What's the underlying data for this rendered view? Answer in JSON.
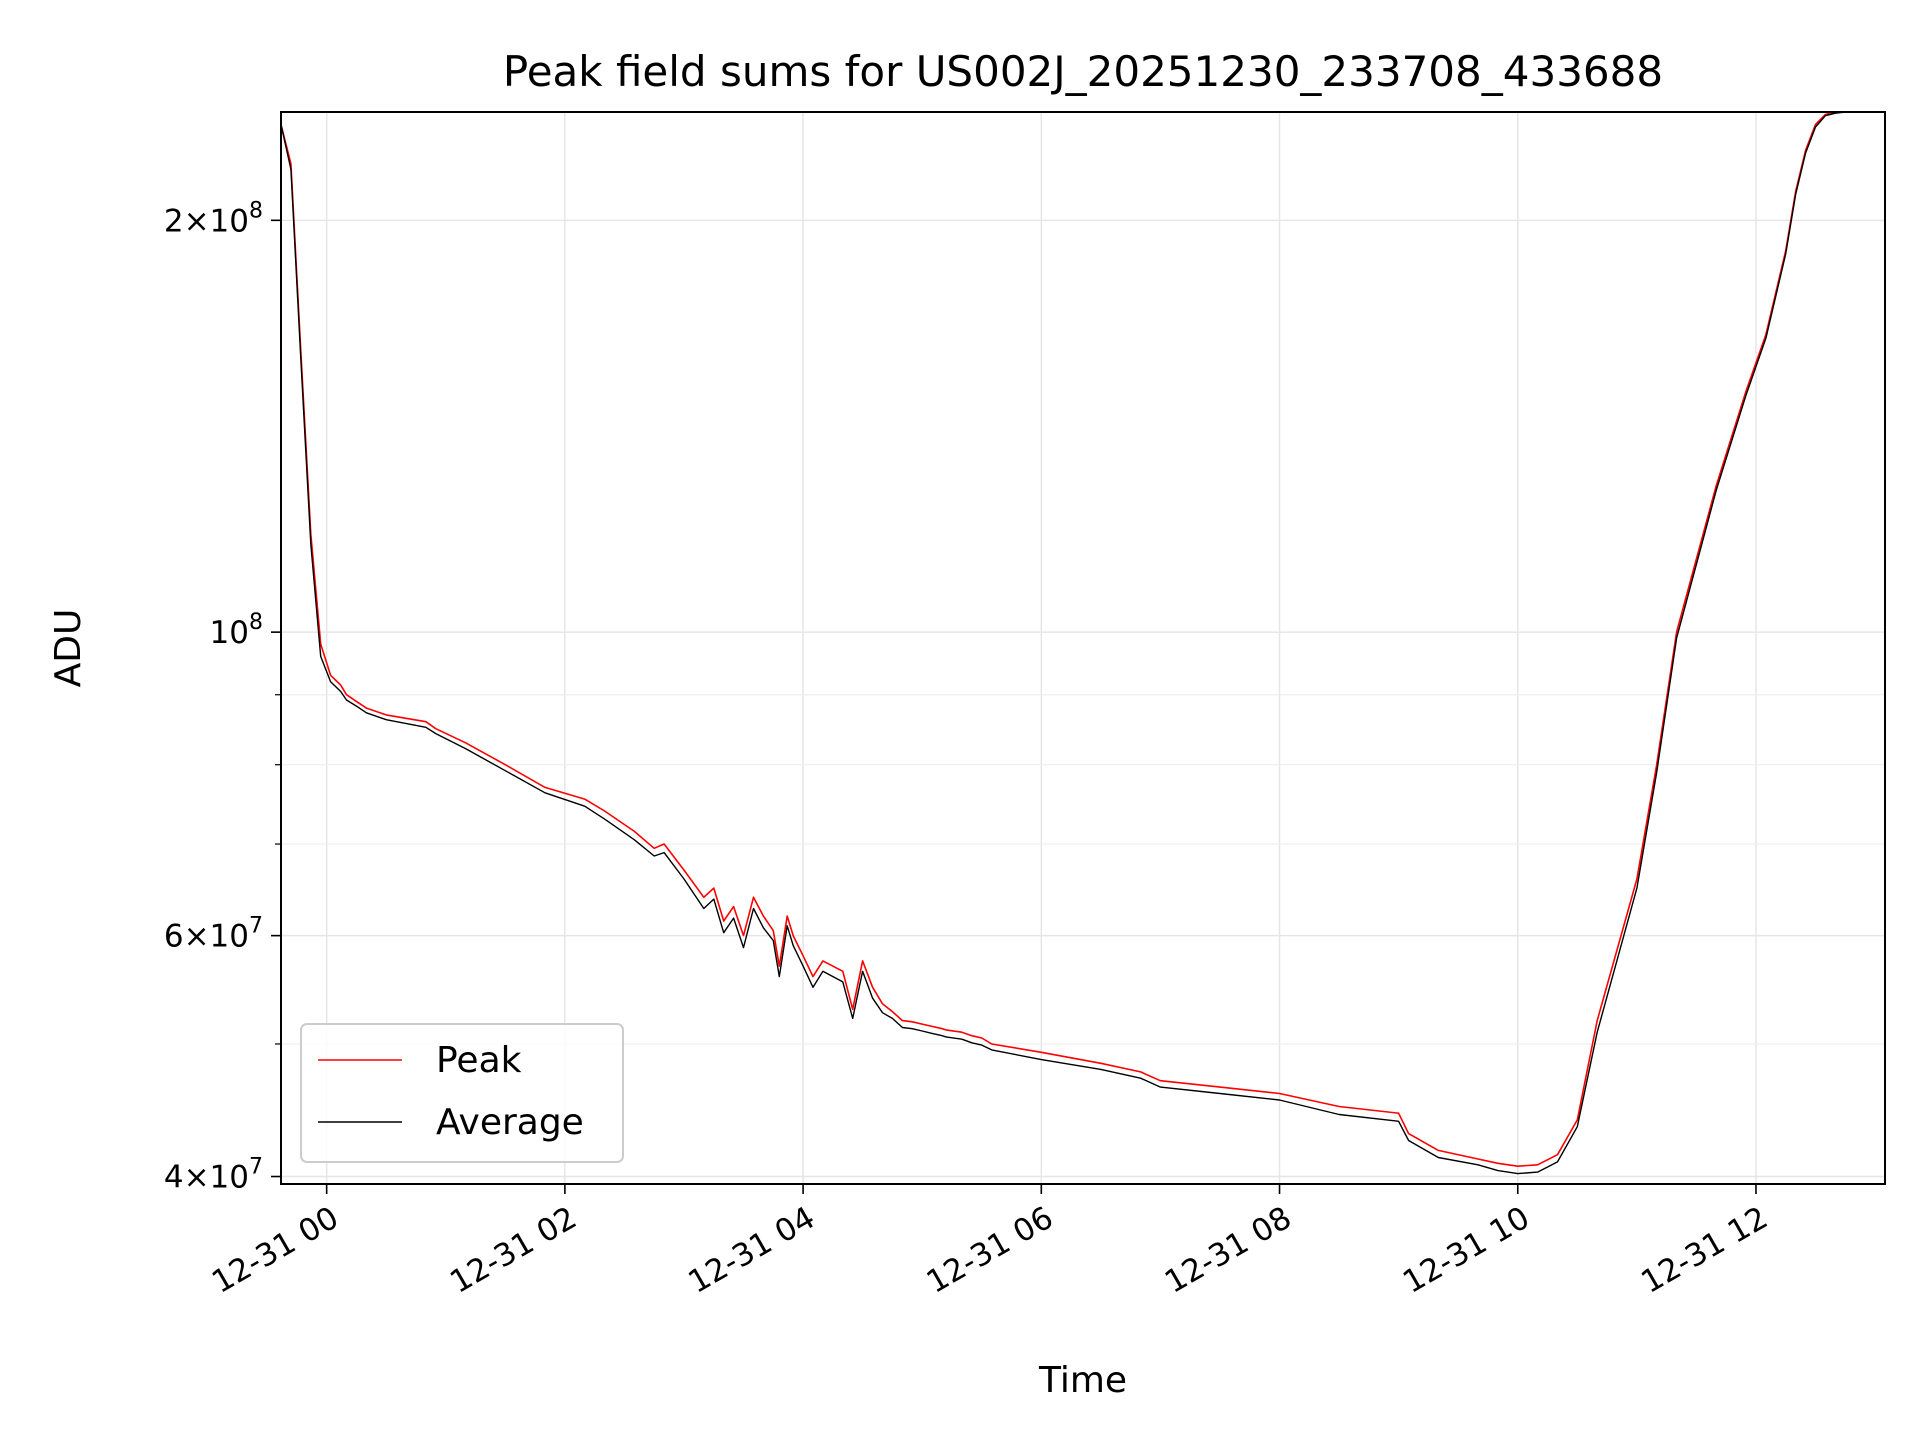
{
  "chart_data": {
    "type": "line",
    "title": "Peak field sums for US002J_20251230_233708_433688",
    "xlabel": "Time",
    "ylabel": "ADU",
    "x_axis_type": "datetime",
    "y_scale": "log",
    "xlim": [
      "12-30 23:37",
      "12-31 13:05"
    ],
    "ylim": [
      39500000,
      240000000
    ],
    "x_ticks": [
      {
        "value": "12-31 00:00",
        "label": "12-31 00"
      },
      {
        "value": "12-31 02:00",
        "label": "12-31 02"
      },
      {
        "value": "12-31 04:00",
        "label": "12-31 04"
      },
      {
        "value": "12-31 06:00",
        "label": "12-31 06"
      },
      {
        "value": "12-31 08:00",
        "label": "12-31 08"
      },
      {
        "value": "12-31 10:00",
        "label": "12-31 10"
      },
      {
        "value": "12-31 12:00",
        "label": "12-31 12"
      }
    ],
    "y_major_ticks": [
      {
        "value": 40000000,
        "mantissa": "4",
        "exponent": "7"
      },
      {
        "value": 60000000,
        "mantissa": "6",
        "exponent": "7"
      },
      {
        "value": 100000000,
        "mantissa": "",
        "exponent": "8"
      },
      {
        "value": 200000000,
        "mantissa": "2",
        "exponent": "8"
      }
    ],
    "y_minor_ticks": [
      50000000,
      70000000,
      80000000,
      90000000
    ],
    "grid": true,
    "legend_position": "lower-left",
    "series": [
      {
        "name": "Peak",
        "color": "#ff0000",
        "x": [
          "12-30 23:37",
          "12-30 23:42",
          "12-30 23:47",
          "12-30 23:52",
          "12-30 23:57",
          "12-31 00:02",
          "12-31 00:07",
          "12-31 00:10",
          "12-31 00:15",
          "12-31 00:20",
          "12-31 00:30",
          "12-31 00:50",
          "12-31 00:55",
          "12-31 01:10",
          "12-31 01:30",
          "12-31 01:50",
          "12-31 02:10",
          "12-31 02:20",
          "12-31 02:35",
          "12-31 02:45",
          "12-31 02:50",
          "12-31 03:00",
          "12-31 03:10",
          "12-31 03:15",
          "12-31 03:20",
          "12-31 03:25",
          "12-31 03:30",
          "12-31 03:35",
          "12-31 03:40",
          "12-31 03:45",
          "12-31 03:48",
          "12-31 03:52",
          "12-31 03:55",
          "12-31 04:00",
          "12-31 04:05",
          "12-31 04:10",
          "12-31 04:20",
          "12-31 04:25",
          "12-31 04:30",
          "12-31 04:35",
          "12-31 04:40",
          "12-31 04:45",
          "12-31 04:50",
          "12-31 04:55",
          "12-31 05:00",
          "12-31 05:05",
          "12-31 05:10",
          "12-31 05:12",
          "12-31 05:20",
          "12-31 05:25",
          "12-31 05:30",
          "12-31 05:35",
          "12-31 06:00",
          "12-31 06:30",
          "12-31 06:50",
          "12-31 07:00",
          "12-31 07:30",
          "12-31 08:00",
          "12-31 08:30",
          "12-31 09:00",
          "12-31 09:05",
          "12-31 09:20",
          "12-31 09:40",
          "12-31 09:50",
          "12-31 10:00",
          "12-31 10:10",
          "12-31 10:20",
          "12-31 10:30",
          "12-31 10:40",
          "12-31 11:00",
          "12-31 11:10",
          "12-31 11:20",
          "12-31 11:40",
          "12-31 11:55",
          "12-31 12:05",
          "12-31 12:15",
          "12-31 12:20",
          "12-31 12:25",
          "12-31 12:30",
          "12-31 12:35",
          "12-31 12:40",
          "12-31 12:45",
          "12-31 12:50",
          "12-31 12:55",
          "12-31 13:00"
        ],
        "y": [
          235000000,
          220000000,
          160000000,
          118000000,
          98000000,
          93000000,
          91500000,
          90000000,
          89000000,
          88000000,
          87000000,
          86000000,
          85000000,
          83000000,
          80000000,
          77000000,
          75500000,
          74000000,
          71500000,
          69500000,
          70000000,
          67000000,
          64000000,
          65000000,
          61500000,
          63000000,
          60000000,
          64000000,
          62000000,
          60500000,
          57000000,
          62000000,
          60000000,
          58000000,
          56000000,
          57500000,
          56500000,
          53000000,
          57500000,
          55000000,
          53500000,
          52800000,
          52000000,
          51900000,
          51700000,
          51500000,
          51300000,
          51200000,
          51000000,
          50700000,
          50500000,
          50000000,
          49300000,
          48400000,
          47700000,
          47000000,
          46500000,
          46000000,
          45000000,
          44500000,
          43000000,
          41800000,
          41200000,
          40900000,
          40700000,
          40800000,
          41500000,
          44000000,
          52000000,
          66000000,
          80000000,
          100000000,
          128000000,
          150000000,
          165000000,
          190000000,
          210000000,
          225000000,
          235000000,
          239000000,
          240000000,
          240000000,
          240000000,
          240000000,
          240000000
        ]
      },
      {
        "name": "Average",
        "color": "#000000",
        "x": [
          "12-30 23:37",
          "12-30 23:42",
          "12-30 23:47",
          "12-30 23:52",
          "12-30 23:57",
          "12-31 00:02",
          "12-31 00:07",
          "12-31 00:10",
          "12-31 00:15",
          "12-31 00:20",
          "12-31 00:30",
          "12-31 00:50",
          "12-31 00:55",
          "12-31 01:10",
          "12-31 01:30",
          "12-31 01:50",
          "12-31 02:10",
          "12-31 02:20",
          "12-31 02:35",
          "12-31 02:45",
          "12-31 02:50",
          "12-31 03:00",
          "12-31 03:10",
          "12-31 03:15",
          "12-31 03:20",
          "12-31 03:25",
          "12-31 03:30",
          "12-31 03:35",
          "12-31 03:40",
          "12-31 03:45",
          "12-31 03:48",
          "12-31 03:52",
          "12-31 03:55",
          "12-31 04:00",
          "12-31 04:05",
          "12-31 04:10",
          "12-31 04:20",
          "12-31 04:25",
          "12-31 04:30",
          "12-31 04:35",
          "12-31 04:40",
          "12-31 04:45",
          "12-31 04:50",
          "12-31 04:55",
          "12-31 05:00",
          "12-31 05:05",
          "12-31 05:10",
          "12-31 05:12",
          "12-31 05:20",
          "12-31 05:25",
          "12-31 05:30",
          "12-31 05:35",
          "12-31 06:00",
          "12-31 06:30",
          "12-31 06:50",
          "12-31 07:00",
          "12-31 07:30",
          "12-31 08:00",
          "12-31 08:30",
          "12-31 09:00",
          "12-31 09:05",
          "12-31 09:20",
          "12-31 09:40",
          "12-31 09:50",
          "12-31 10:00",
          "12-31 10:10",
          "12-31 10:20",
          "12-31 10:30",
          "12-31 10:40",
          "12-31 11:00",
          "12-31 11:10",
          "12-31 11:20",
          "12-31 11:40",
          "12-31 11:55",
          "12-31 12:05",
          "12-31 12:15",
          "12-31 12:20",
          "12-31 12:25",
          "12-31 12:30",
          "12-31 12:35",
          "12-31 12:40",
          "12-31 12:45",
          "12-31 12:50",
          "12-31 12:55",
          "12-31 13:00"
        ],
        "y": [
          235000000,
          218000000,
          158000000,
          116000000,
          96000000,
          92000000,
          90500000,
          89200000,
          88300000,
          87300000,
          86300000,
          85200000,
          84300000,
          82200000,
          79200000,
          76300000,
          74600000,
          73000000,
          70500000,
          68600000,
          69000000,
          66000000,
          62800000,
          63800000,
          60300000,
          61800000,
          58800000,
          62800000,
          60800000,
          59500000,
          56000000,
          61000000,
          59000000,
          57000000,
          55000000,
          56500000,
          55500000,
          52200000,
          56500000,
          54000000,
          52700000,
          52200000,
          51400000,
          51300000,
          51100000,
          50900000,
          50700000,
          50600000,
          50400000,
          50100000,
          49900000,
          49500000,
          48700000,
          47900000,
          47200000,
          46500000,
          46000000,
          45500000,
          44400000,
          43900000,
          42500000,
          41300000,
          40800000,
          40400000,
          40200000,
          40300000,
          41000000,
          43500000,
          51000000,
          65000000,
          79000000,
          99000000,
          127000000,
          149000000,
          164000000,
          189000000,
          209000000,
          224000000,
          234000000,
          238500000,
          239500000,
          240000000,
          240000000,
          240000000,
          240000000
        ]
      }
    ]
  }
}
